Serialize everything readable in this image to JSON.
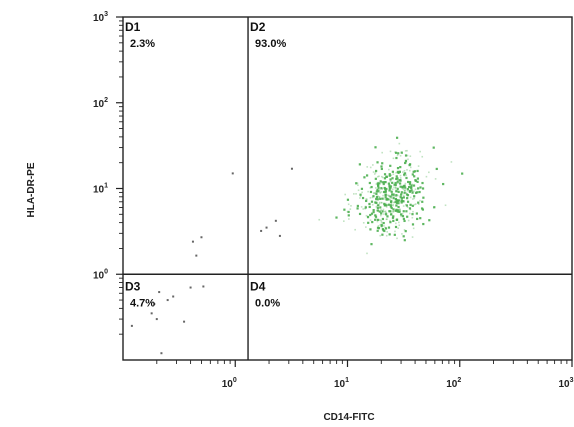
{
  "chart_data": {
    "type": "scatter",
    "title": "",
    "xlabel": "CD14-FITC",
    "ylabel": "HLA-DR-PE",
    "x_scale": "log",
    "y_scale": "log",
    "xlim": [
      0.1,
      1000
    ],
    "ylim": [
      0.1,
      1000
    ],
    "x_ticks": [
      {
        "base": "10",
        "exp": "0",
        "value": 1
      },
      {
        "base": "10",
        "exp": "1",
        "value": 10
      },
      {
        "base": "10",
        "exp": "2",
        "value": 100
      },
      {
        "base": "10",
        "exp": "3",
        "value": 1000
      }
    ],
    "y_ticks": [
      {
        "base": "10",
        "exp": "0",
        "value": 1
      },
      {
        "base": "10",
        "exp": "1",
        "value": 10
      },
      {
        "base": "10",
        "exp": "2",
        "value": 100
      },
      {
        "base": "10",
        "exp": "3",
        "value": 1000
      }
    ],
    "gate": {
      "x": 1.3,
      "y": 1.0
    },
    "quadrants": [
      {
        "name": "D1",
        "percent": "2.3%"
      },
      {
        "name": "D2",
        "percent": "93.0%"
      },
      {
        "name": "D3",
        "percent": "4.7%"
      },
      {
        "name": "D4",
        "percent": "0.0%"
      }
    ],
    "colors": {
      "events": "#4caf50",
      "sparse_events": "#666666",
      "axes": "#222222"
    },
    "sparse_points": [
      [
        0.12,
        0.25
      ],
      [
        0.18,
        0.35
      ],
      [
        0.19,
        0.45
      ],
      [
        0.2,
        0.3
      ],
      [
        0.21,
        0.62
      ],
      [
        0.22,
        0.12
      ],
      [
        0.25,
        0.5
      ],
      [
        0.28,
        0.55
      ],
      [
        0.35,
        0.28
      ],
      [
        0.4,
        0.7
      ],
      [
        0.52,
        0.72
      ],
      [
        0.45,
        1.65
      ],
      [
        0.5,
        2.7
      ],
      [
        0.42,
        2.4
      ],
      [
        0.95,
        15
      ],
      [
        1.9,
        3.5
      ],
      [
        2.3,
        4.2
      ],
      [
        2.5,
        2.8
      ],
      [
        3.2,
        17
      ],
      [
        1.7,
        3.2
      ]
    ]
  }
}
